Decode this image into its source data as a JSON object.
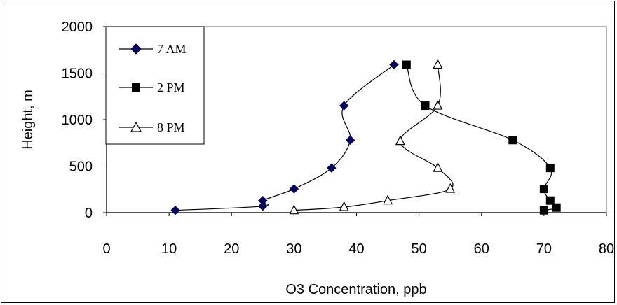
{
  "chart_data": {
    "type": "line",
    "title": "",
    "xlabel": "O3 Concentration, ppb",
    "ylabel": "Height, m",
    "xlim": [
      0,
      80
    ],
    "ylim": [
      0,
      2000
    ],
    "x_ticks": [
      0,
      10,
      20,
      30,
      40,
      50,
      60,
      70,
      80
    ],
    "y_ticks": [
      0,
      500,
      1000,
      1500,
      2000
    ],
    "grid": false,
    "legend_position": "top-left",
    "series": [
      {
        "name": "7 AM",
        "marker": "diamond",
        "color": "#00005e",
        "points": [
          [
            11,
            25
          ],
          [
            25,
            70
          ],
          [
            25,
            130
          ],
          [
            30,
            255
          ],
          [
            36,
            480
          ],
          [
            39,
            780
          ],
          [
            38,
            1150
          ],
          [
            46,
            1590
          ]
        ]
      },
      {
        "name": "2 PM",
        "marker": "square",
        "color": "#000000",
        "points": [
          [
            70,
            25
          ],
          [
            72,
            55
          ],
          [
            71,
            130
          ],
          [
            70,
            255
          ],
          [
            71,
            480
          ],
          [
            65,
            780
          ],
          [
            51,
            1150
          ],
          [
            48,
            1590
          ]
        ]
      },
      {
        "name": "8 PM",
        "marker": "triangle-open",
        "color": "#000000",
        "points": [
          [
            30,
            25
          ],
          [
            38,
            60
          ],
          [
            45,
            130
          ],
          [
            55,
            255
          ],
          [
            53,
            480
          ],
          [
            47,
            770
          ],
          [
            53,
            1150
          ],
          [
            53,
            1590
          ]
        ]
      }
    ]
  }
}
